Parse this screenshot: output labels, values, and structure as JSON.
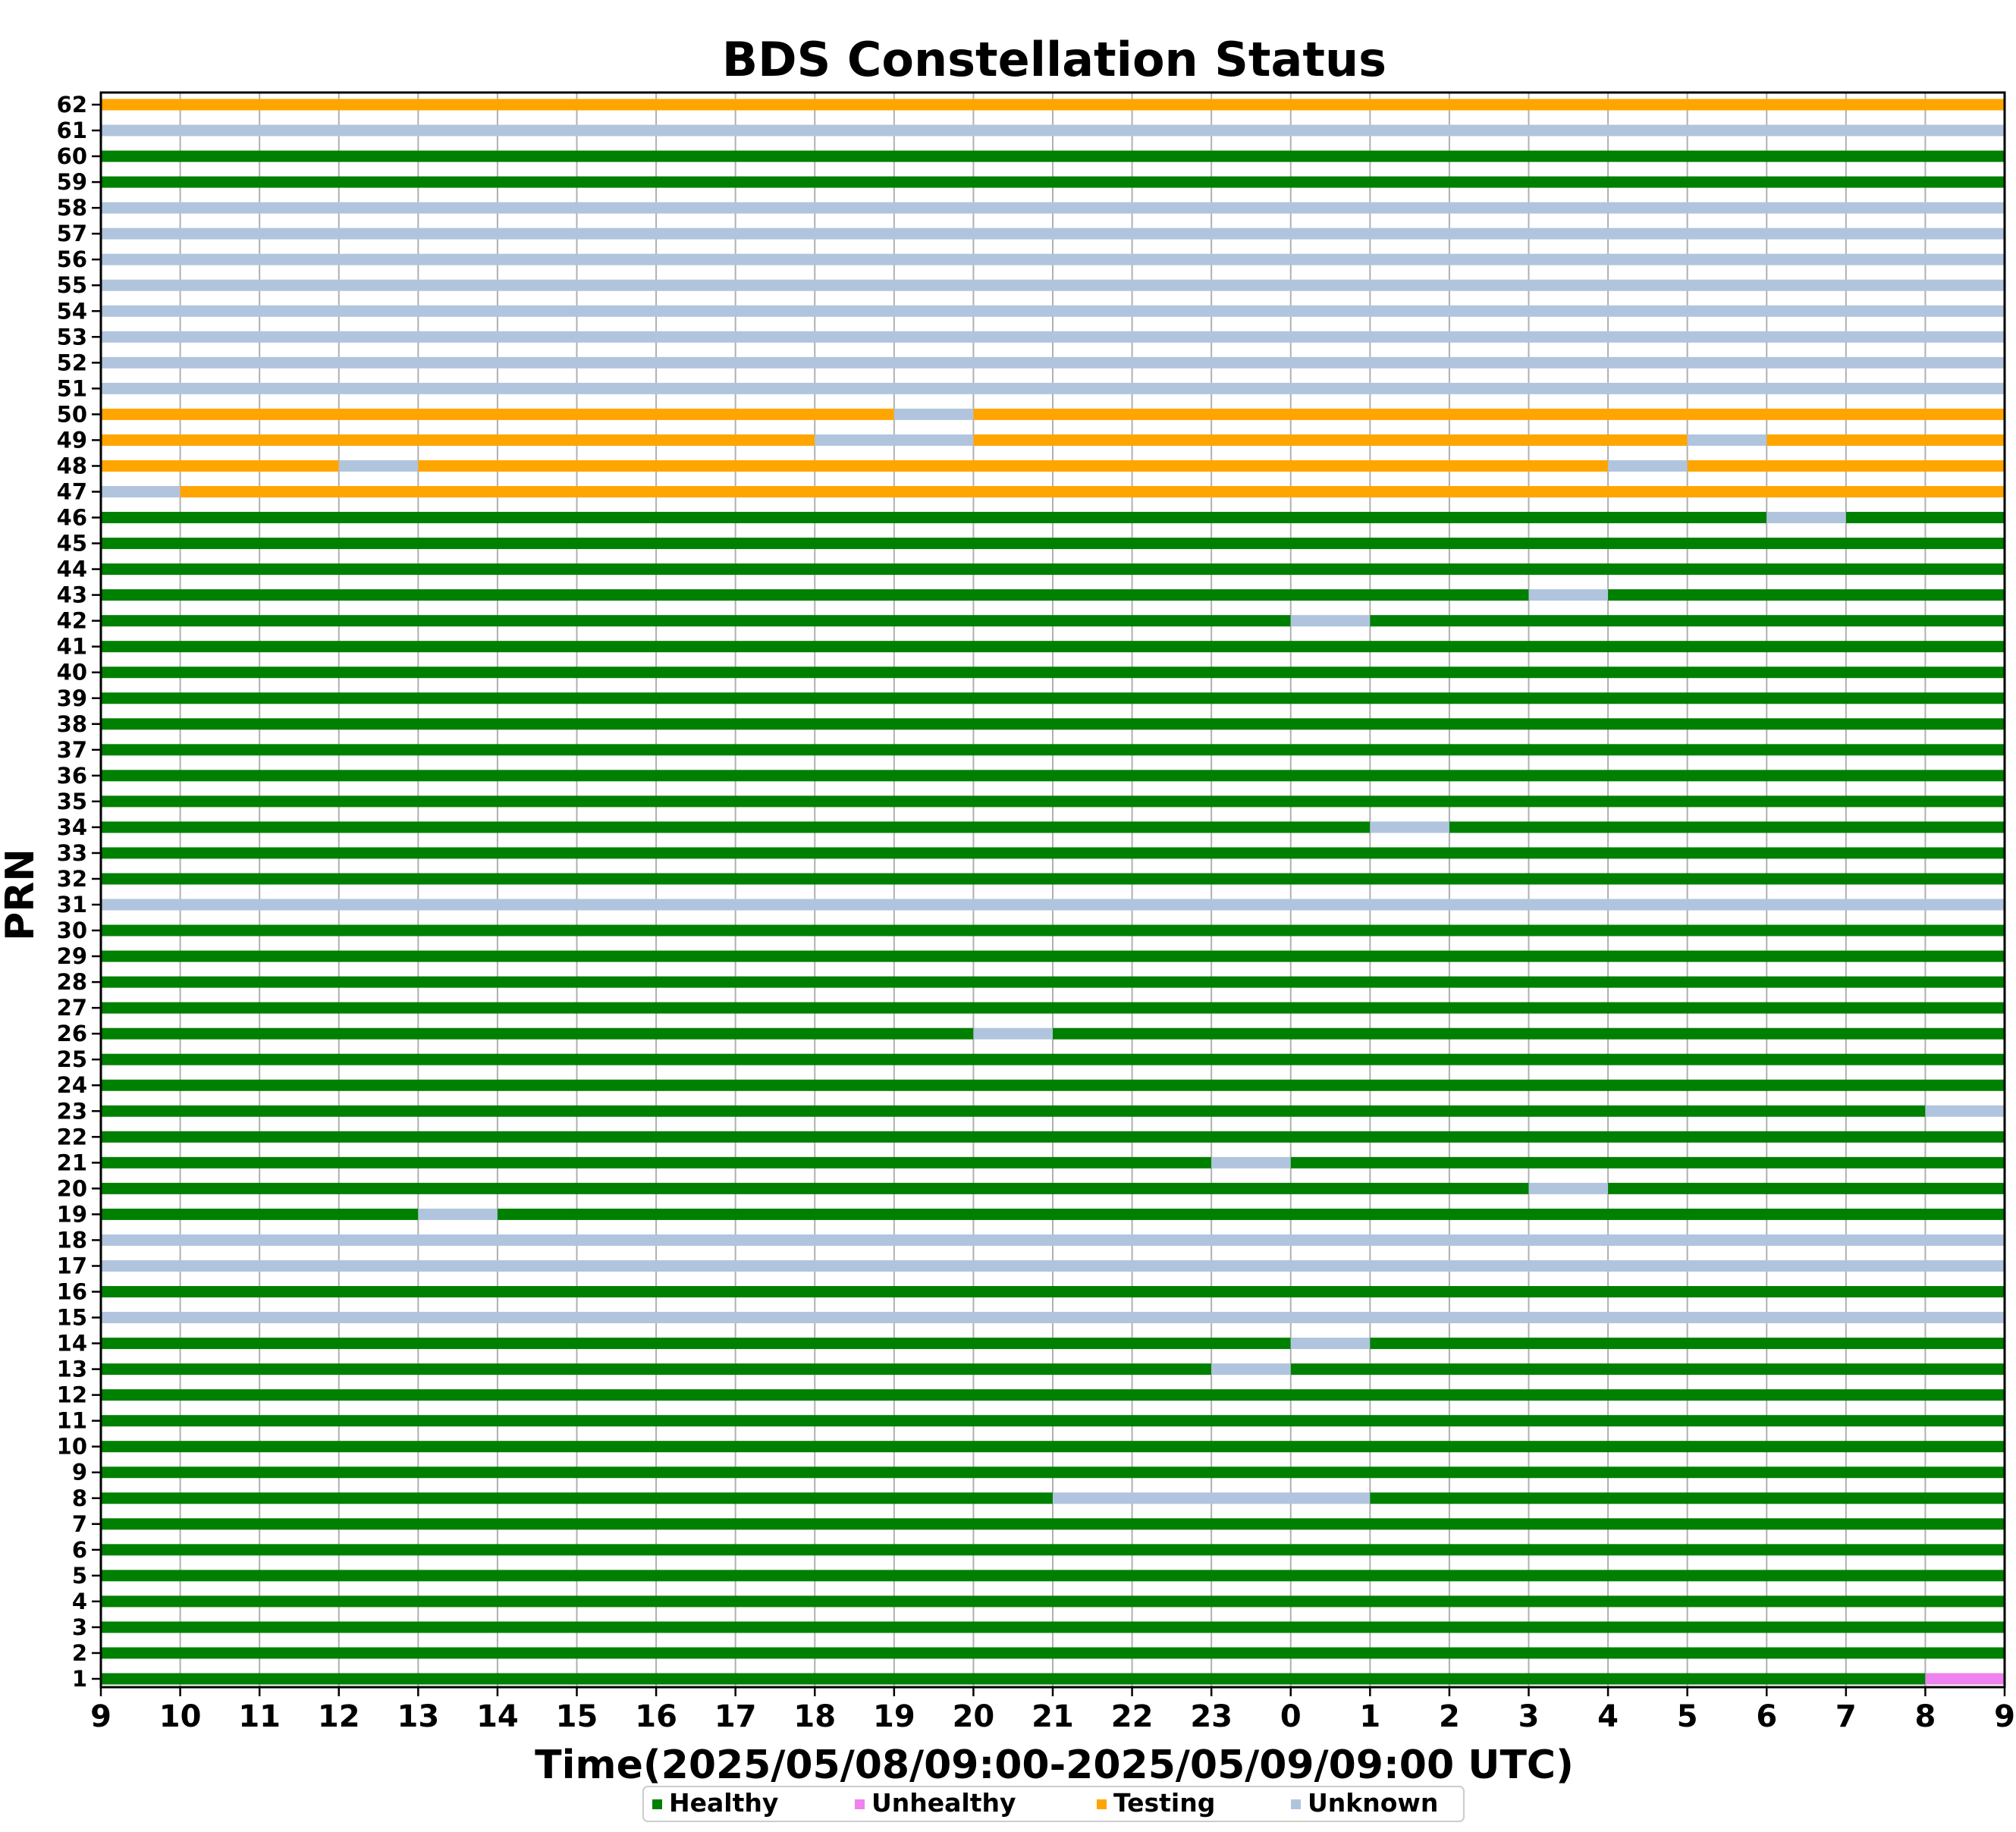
{
  "chart_data": {
    "type": "timeline",
    "title": "BDS Constellation Status",
    "xlabel": "Time(2025/05/08/09:00-2025/05/09/09:00 UTC)",
    "ylabel": "PRN",
    "x_ticks": [
      "9",
      "10",
      "11",
      "12",
      "13",
      "14",
      "15",
      "16",
      "17",
      "18",
      "19",
      "20",
      "21",
      "22",
      "23",
      "0",
      "1",
      "2",
      "3",
      "4",
      "5",
      "6",
      "7",
      "8",
      "9"
    ],
    "y_ticks": [
      "1",
      "2",
      "3",
      "4",
      "5",
      "6",
      "7",
      "8",
      "9",
      "10",
      "11",
      "12",
      "13",
      "14",
      "15",
      "16",
      "17",
      "18",
      "19",
      "20",
      "21",
      "22",
      "23",
      "24",
      "25",
      "26",
      "27",
      "28",
      "29",
      "30",
      "31",
      "32",
      "33",
      "34",
      "35",
      "36",
      "37",
      "38",
      "39",
      "40",
      "41",
      "42",
      "43",
      "44",
      "45",
      "46",
      "47",
      "48",
      "49",
      "50",
      "51",
      "52",
      "53",
      "54",
      "55",
      "56",
      "57",
      "58",
      "59",
      "60",
      "61",
      "62"
    ],
    "time_range": [
      "2025-05-08 09:00",
      "2025-05-09 09:00"
    ],
    "legend": [
      {
        "key": "H",
        "label": "Healthy",
        "color": "#008000"
      },
      {
        "key": "U",
        "label": "Unhealthy",
        "color": "#ee82ee"
      },
      {
        "key": "T",
        "label": "Testing",
        "color": "#ffa500"
      },
      {
        "key": "N",
        "label": "Unknown",
        "color": "#b0c4de"
      }
    ],
    "legend_position": "bottom-center",
    "grid": "vertical",
    "series_note": "segments as [start_hour, end_hour, status]; hours since 2025/05/08 09:00 UTC",
    "series": [
      {
        "prn": 1,
        "segments": [
          [
            0,
            23,
            "H"
          ],
          [
            23,
            24,
            "U"
          ]
        ]
      },
      {
        "prn": 2,
        "segments": [
          [
            0,
            24,
            "H"
          ]
        ]
      },
      {
        "prn": 3,
        "segments": [
          [
            0,
            24,
            "H"
          ]
        ]
      },
      {
        "prn": 4,
        "segments": [
          [
            0,
            24,
            "H"
          ]
        ]
      },
      {
        "prn": 5,
        "segments": [
          [
            0,
            24,
            "H"
          ]
        ]
      },
      {
        "prn": 6,
        "segments": [
          [
            0,
            24,
            "H"
          ]
        ]
      },
      {
        "prn": 7,
        "segments": [
          [
            0,
            24,
            "H"
          ]
        ]
      },
      {
        "prn": 8,
        "segments": [
          [
            0,
            12,
            "H"
          ],
          [
            12,
            16,
            "N"
          ],
          [
            16,
            24,
            "H"
          ]
        ]
      },
      {
        "prn": 9,
        "segments": [
          [
            0,
            24,
            "H"
          ]
        ]
      },
      {
        "prn": 10,
        "segments": [
          [
            0,
            24,
            "H"
          ]
        ]
      },
      {
        "prn": 11,
        "segments": [
          [
            0,
            24,
            "H"
          ]
        ]
      },
      {
        "prn": 12,
        "segments": [
          [
            0,
            24,
            "H"
          ]
        ]
      },
      {
        "prn": 13,
        "segments": [
          [
            0,
            14,
            "H"
          ],
          [
            14,
            15,
            "N"
          ],
          [
            15,
            24,
            "H"
          ]
        ]
      },
      {
        "prn": 14,
        "segments": [
          [
            0,
            15,
            "H"
          ],
          [
            15,
            16,
            "N"
          ],
          [
            16,
            24,
            "H"
          ]
        ]
      },
      {
        "prn": 15,
        "segments": [
          [
            0,
            24,
            "N"
          ]
        ]
      },
      {
        "prn": 16,
        "segments": [
          [
            0,
            24,
            "H"
          ]
        ]
      },
      {
        "prn": 17,
        "segments": [
          [
            0,
            24,
            "N"
          ]
        ]
      },
      {
        "prn": 18,
        "segments": [
          [
            0,
            24,
            "N"
          ]
        ]
      },
      {
        "prn": 19,
        "segments": [
          [
            0,
            4,
            "H"
          ],
          [
            4,
            5,
            "N"
          ],
          [
            5,
            24,
            "H"
          ]
        ]
      },
      {
        "prn": 20,
        "segments": [
          [
            0,
            18,
            "H"
          ],
          [
            18,
            19,
            "N"
          ],
          [
            19,
            24,
            "H"
          ]
        ]
      },
      {
        "prn": 21,
        "segments": [
          [
            0,
            14,
            "H"
          ],
          [
            14,
            15,
            "N"
          ],
          [
            15,
            24,
            "H"
          ]
        ]
      },
      {
        "prn": 22,
        "segments": [
          [
            0,
            24,
            "H"
          ]
        ]
      },
      {
        "prn": 23,
        "segments": [
          [
            0,
            23,
            "H"
          ],
          [
            23,
            24,
            "N"
          ]
        ]
      },
      {
        "prn": 24,
        "segments": [
          [
            0,
            24,
            "H"
          ]
        ]
      },
      {
        "prn": 25,
        "segments": [
          [
            0,
            24,
            "H"
          ]
        ]
      },
      {
        "prn": 26,
        "segments": [
          [
            0,
            11,
            "H"
          ],
          [
            11,
            12,
            "N"
          ],
          [
            12,
            24,
            "H"
          ]
        ]
      },
      {
        "prn": 27,
        "segments": [
          [
            0,
            24,
            "H"
          ]
        ]
      },
      {
        "prn": 28,
        "segments": [
          [
            0,
            24,
            "H"
          ]
        ]
      },
      {
        "prn": 29,
        "segments": [
          [
            0,
            24,
            "H"
          ]
        ]
      },
      {
        "prn": 30,
        "segments": [
          [
            0,
            24,
            "H"
          ]
        ]
      },
      {
        "prn": 31,
        "segments": [
          [
            0,
            24,
            "N"
          ]
        ]
      },
      {
        "prn": 32,
        "segments": [
          [
            0,
            24,
            "H"
          ]
        ]
      },
      {
        "prn": 33,
        "segments": [
          [
            0,
            24,
            "H"
          ]
        ]
      },
      {
        "prn": 34,
        "segments": [
          [
            0,
            16,
            "H"
          ],
          [
            16,
            17,
            "N"
          ],
          [
            17,
            24,
            "H"
          ]
        ]
      },
      {
        "prn": 35,
        "segments": [
          [
            0,
            24,
            "H"
          ]
        ]
      },
      {
        "prn": 36,
        "segments": [
          [
            0,
            24,
            "H"
          ]
        ]
      },
      {
        "prn": 37,
        "segments": [
          [
            0,
            24,
            "H"
          ]
        ]
      },
      {
        "prn": 38,
        "segments": [
          [
            0,
            24,
            "H"
          ]
        ]
      },
      {
        "prn": 39,
        "segments": [
          [
            0,
            24,
            "H"
          ]
        ]
      },
      {
        "prn": 40,
        "segments": [
          [
            0,
            24,
            "H"
          ]
        ]
      },
      {
        "prn": 41,
        "segments": [
          [
            0,
            24,
            "H"
          ]
        ]
      },
      {
        "prn": 42,
        "segments": [
          [
            0,
            15,
            "H"
          ],
          [
            15,
            16,
            "N"
          ],
          [
            16,
            24,
            "H"
          ]
        ]
      },
      {
        "prn": 43,
        "segments": [
          [
            0,
            18,
            "H"
          ],
          [
            18,
            19,
            "N"
          ],
          [
            19,
            24,
            "H"
          ]
        ]
      },
      {
        "prn": 44,
        "segments": [
          [
            0,
            24,
            "H"
          ]
        ]
      },
      {
        "prn": 45,
        "segments": [
          [
            0,
            24,
            "H"
          ]
        ]
      },
      {
        "prn": 46,
        "segments": [
          [
            0,
            21,
            "H"
          ],
          [
            21,
            22,
            "N"
          ],
          [
            22,
            24,
            "H"
          ]
        ]
      },
      {
        "prn": 47,
        "segments": [
          [
            0,
            1,
            "N"
          ],
          [
            1,
            24,
            "T"
          ]
        ]
      },
      {
        "prn": 48,
        "segments": [
          [
            0,
            3,
            "T"
          ],
          [
            3,
            4,
            "N"
          ],
          [
            4,
            19,
            "T"
          ],
          [
            19,
            20,
            "N"
          ],
          [
            20,
            24,
            "T"
          ]
        ]
      },
      {
        "prn": 49,
        "segments": [
          [
            0,
            9,
            "T"
          ],
          [
            9,
            11,
            "N"
          ],
          [
            11,
            20,
            "T"
          ],
          [
            20,
            21,
            "N"
          ],
          [
            21,
            24,
            "T"
          ]
        ]
      },
      {
        "prn": 50,
        "segments": [
          [
            0,
            10,
            "T"
          ],
          [
            10,
            11,
            "N"
          ],
          [
            11,
            24,
            "T"
          ]
        ]
      },
      {
        "prn": 51,
        "segments": [
          [
            0,
            24,
            "N"
          ]
        ]
      },
      {
        "prn": 52,
        "segments": [
          [
            0,
            24,
            "N"
          ]
        ]
      },
      {
        "prn": 53,
        "segments": [
          [
            0,
            24,
            "N"
          ]
        ]
      },
      {
        "prn": 54,
        "segments": [
          [
            0,
            24,
            "N"
          ]
        ]
      },
      {
        "prn": 55,
        "segments": [
          [
            0,
            24,
            "N"
          ]
        ]
      },
      {
        "prn": 56,
        "segments": [
          [
            0,
            24,
            "N"
          ]
        ]
      },
      {
        "prn": 57,
        "segments": [
          [
            0,
            24,
            "N"
          ]
        ]
      },
      {
        "prn": 58,
        "segments": [
          [
            0,
            24,
            "N"
          ]
        ]
      },
      {
        "prn": 59,
        "segments": [
          [
            0,
            24,
            "H"
          ]
        ]
      },
      {
        "prn": 60,
        "segments": [
          [
            0,
            24,
            "H"
          ]
        ]
      },
      {
        "prn": 61,
        "segments": [
          [
            0,
            24,
            "N"
          ]
        ]
      },
      {
        "prn": 62,
        "segments": [
          [
            0,
            24,
            "T"
          ]
        ]
      }
    ]
  }
}
